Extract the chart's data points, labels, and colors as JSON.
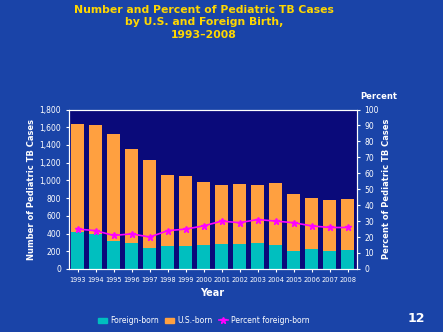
{
  "years": [
    1993,
    1994,
    1995,
    1996,
    1997,
    1998,
    1999,
    2000,
    2001,
    2002,
    2003,
    2004,
    2005,
    2006,
    2007,
    2008
  ],
  "foreign_born": [
    420,
    390,
    310,
    290,
    240,
    260,
    260,
    270,
    280,
    280,
    290,
    270,
    200,
    220,
    200,
    210
  ],
  "us_born": [
    1220,
    1240,
    1210,
    1060,
    990,
    800,
    790,
    710,
    670,
    680,
    660,
    700,
    650,
    580,
    580,
    580
  ],
  "percent_foreign": [
    25,
    24,
    21,
    22,
    20,
    24,
    25,
    27,
    30,
    29,
    31,
    30,
    29,
    27,
    26,
    26
  ],
  "bg_color": "#0a0a7a",
  "bar_foreign_color": "#00BFBF",
  "bar_us_color": "#FFA040",
  "line_color": "#FF00FF",
  "title_color": "#FFD700",
  "axis_text_color": "#FFFFFF",
  "tick_label_color": "#FFFFFF",
  "title_line1": "Number and Percent of Pediatric TB Cases",
  "title_line2": "by U.S. and Foreign Birth,",
  "title_line3": "1993–2008",
  "ylabel_left": "Number of Pediatric TB Cases",
  "ylabel_right": "Percent of Pediatric TB Cases",
  "xlabel": "Year",
  "ylim_left": [
    0,
    1800
  ],
  "ylim_right": [
    0,
    100
  ],
  "yticks_left": [
    0,
    200,
    400,
    600,
    800,
    1000,
    1200,
    1400,
    1600,
    1800
  ],
  "yticks_right": [
    0,
    10,
    20,
    30,
    40,
    50,
    60,
    70,
    80,
    90,
    100
  ],
  "percent_label": "Percent",
  "legend_labels": [
    "Foreign-born",
    "U.S.-born",
    "Percent foreign-born"
  ],
  "slide_number": "12",
  "outer_bg": "#1a44a8"
}
